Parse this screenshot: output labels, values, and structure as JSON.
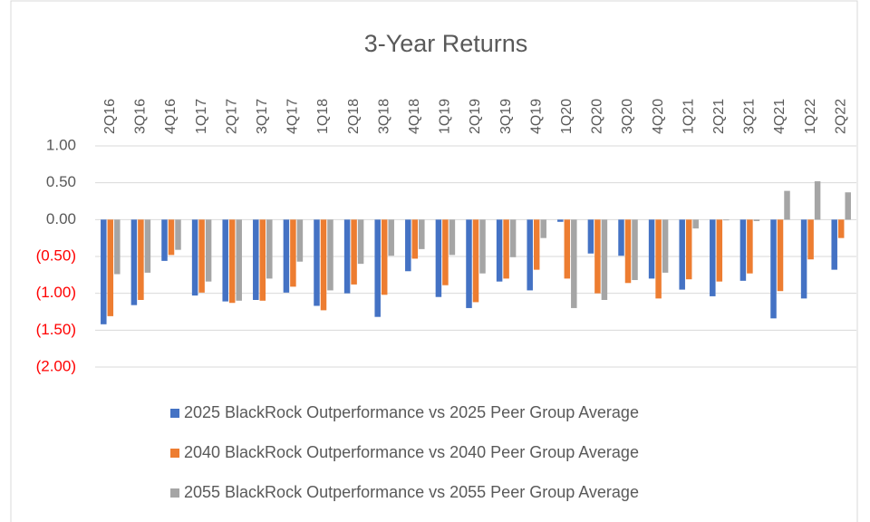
{
  "chart_data": {
    "type": "bar",
    "title": "3-Year Returns",
    "categories": [
      "2Q16",
      "3Q16",
      "4Q16",
      "1Q17",
      "2Q17",
      "3Q17",
      "4Q17",
      "1Q18",
      "2Q18",
      "3Q18",
      "4Q18",
      "1Q19",
      "2Q19",
      "3Q19",
      "4Q19",
      "1Q20",
      "2Q20",
      "3Q20",
      "4Q20",
      "1Q21",
      "2Q21",
      "3Q21",
      "4Q21",
      "1Q22",
      "2Q22"
    ],
    "series": [
      {
        "name": "2025 BlackRock Outperformance vs 2025 Peer Group Average",
        "color": "#4472c4",
        "values": [
          -1.42,
          -1.16,
          -0.56,
          -1.03,
          -1.11,
          -1.09,
          -0.99,
          -1.17,
          -1.0,
          -1.32,
          -0.7,
          -1.05,
          -1.2,
          -0.84,
          -0.96,
          -0.03,
          -0.46,
          -0.49,
          -0.8,
          -0.95,
          -1.04,
          -0.83,
          -1.34,
          -1.07,
          -0.68
        ]
      },
      {
        "name": "2040 BlackRock Outperformance vs 2040 Peer Group Average",
        "color": "#ed7d31",
        "values": [
          -1.31,
          -1.09,
          -0.48,
          -0.99,
          -1.13,
          -1.1,
          -0.91,
          -1.23,
          -0.88,
          -1.02,
          -0.53,
          -0.89,
          -1.12,
          -0.8,
          -0.68,
          -0.8,
          -1.0,
          -0.86,
          -1.07,
          -0.81,
          -0.84,
          -0.73,
          -0.97,
          -0.54,
          -0.25
        ]
      },
      {
        "name": "2055 BlackRock Outperformance vs 2055 Peer Group Average",
        "color": "#a5a5a5",
        "values": [
          -0.74,
          -0.72,
          -0.41,
          -0.84,
          -1.1,
          -0.8,
          -0.57,
          -0.96,
          -0.6,
          -0.49,
          -0.4,
          -0.48,
          -0.73,
          -0.51,
          -0.25,
          -1.2,
          -1.09,
          -0.82,
          -0.72,
          -0.12,
          -0.01,
          -0.02,
          0.39,
          0.52,
          0.37
        ]
      }
    ],
    "ylim": [
      -2,
      1
    ],
    "yticks": [
      {
        "value": 1,
        "label": "1.00"
      },
      {
        "value": 0.5,
        "label": "0.50"
      },
      {
        "value": 0,
        "label": "0.00"
      },
      {
        "value": -0.5,
        "label": "(0.50)"
      },
      {
        "value": -1,
        "label": "(1.00)"
      },
      {
        "value": -1.5,
        "label": "(1.50)"
      },
      {
        "value": -2,
        "label": "(2.00)"
      }
    ],
    "negative_tick_color": "#ff0000",
    "grid": true,
    "legend": "bottom"
  }
}
